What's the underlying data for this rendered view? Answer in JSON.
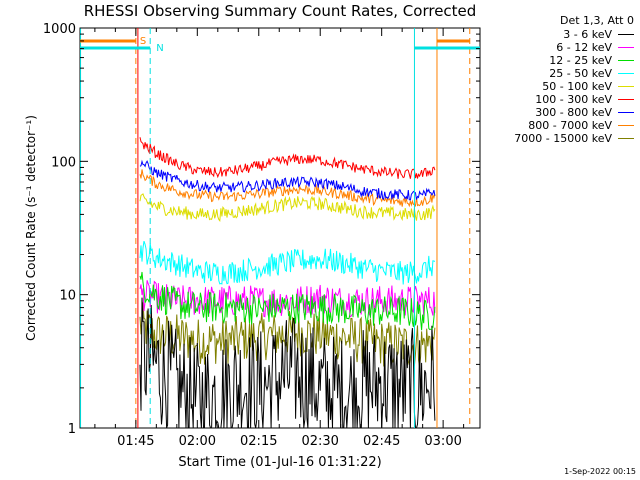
{
  "chart_data": {
    "type": "line",
    "title": "RHESSI Observing Summary Count Rates, Corrected",
    "xlabel": "Start Time (01-Jul-16 01:31:22)",
    "ylabel": "Corrected Count Rate (s⁻¹ detector⁻¹)",
    "y_scale": "log",
    "ylim": [
      1,
      1000
    ],
    "y_ticks": [
      "1",
      "10",
      "100",
      "1000"
    ],
    "x_ticks": [
      "01:45",
      "02:00",
      "02:15",
      "02:30",
      "02:45",
      "03:00"
    ],
    "xlim": [
      "01:31:22",
      "03:09:00"
    ],
    "legend_title": "Det 1,3, Att 0",
    "legend_position": "right",
    "markers": [
      {
        "label": "S",
        "color": "#ff8000"
      },
      {
        "label": "N",
        "color": "#00e0e0"
      }
    ],
    "time_points": [
      "01:46",
      "01:50",
      "01:55",
      "02:00",
      "02:05",
      "02:10",
      "02:15",
      "02:20",
      "02:25",
      "02:30",
      "02:35",
      "02:40",
      "02:45",
      "02:50",
      "02:55",
      "02:58"
    ],
    "series": [
      {
        "name": "3 - 6 keV",
        "color": "#000000",
        "values": [
          3.5,
          3.0,
          2.0,
          1.6,
          1.8,
          2.2,
          2.0,
          2.4,
          2.6,
          2.0,
          1.8,
          2.0,
          2.2,
          2.0,
          2.0,
          2.5
        ]
      },
      {
        "name": "6 - 12 keV",
        "color": "#ff00ff",
        "values": [
          10,
          9.5,
          9,
          9,
          9,
          9,
          9,
          9,
          9,
          9.5,
          9,
          9,
          9,
          9,
          9,
          9
        ]
      },
      {
        "name": "12 - 25 keV",
        "color": "#00dd00",
        "values": [
          12,
          10,
          8.5,
          8,
          8,
          8,
          7.8,
          8,
          8,
          8,
          7.8,
          7.5,
          7.5,
          7.5,
          7,
          7
        ]
      },
      {
        "name": "25 - 50 keV",
        "color": "#00ffff",
        "values": [
          22,
          19,
          17,
          15,
          14.5,
          15,
          16,
          17,
          18,
          18.5,
          17.5,
          16,
          15,
          14.5,
          15,
          17
        ]
      },
      {
        "name": "50 - 100 keV",
        "color": "#dddd00",
        "values": [
          52,
          46,
          42,
          40,
          40,
          42,
          44,
          47,
          49,
          48,
          45,
          42,
          41,
          40,
          40,
          42
        ]
      },
      {
        "name": "100 - 300 keV",
        "color": "#ff0000",
        "values": [
          140,
          115,
          95,
          85,
          82,
          86,
          92,
          100,
          104,
          102,
          95,
          88,
          83,
          80,
          80,
          88
        ]
      },
      {
        "name": "300 - 800 keV",
        "color": "#0000ff",
        "values": [
          100,
          82,
          72,
          66,
          63,
          64,
          66,
          69,
          70,
          69,
          65,
          60,
          57,
          56,
          55,
          60
        ]
      },
      {
        "name": "800 - 7000 keV",
        "color": "#ff8000",
        "values": [
          82,
          68,
          60,
          56,
          54,
          55,
          57,
          60,
          62,
          60,
          57,
          53,
          51,
          50,
          50,
          54
        ]
      },
      {
        "name": "7000 - 15000 keV",
        "color": "#808000",
        "values": [
          6,
          5,
          4.8,
          4.5,
          4.5,
          4.6,
          4.8,
          5,
          5.2,
          5,
          4.8,
          4.5,
          4.3,
          4.2,
          4.2,
          4.5
        ]
      }
    ]
  },
  "footer": {
    "timestamp": "1-Sep-2022 00:15"
  }
}
